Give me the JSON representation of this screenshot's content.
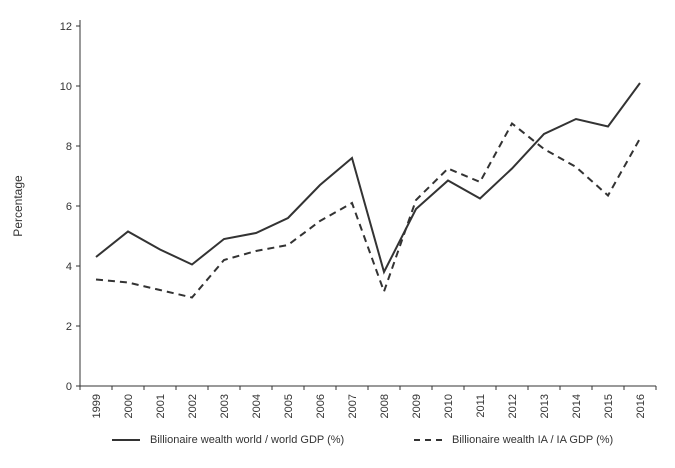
{
  "chart_data": {
    "type": "line",
    "title": "",
    "xlabel": "",
    "ylabel": "Percentage",
    "ylim": [
      0,
      12
    ],
    "yticks": [
      0,
      2,
      4,
      6,
      8,
      10,
      12
    ],
    "ytick_labels": [
      "0",
      "2",
      "4",
      "6",
      "8",
      "10",
      "12"
    ],
    "categories": [
      "1999",
      "2000",
      "2001",
      "2002",
      "2003",
      "2004",
      "2005",
      "2006",
      "2007",
      "2008",
      "2009",
      "2010",
      "2011",
      "2012",
      "2013",
      "2014",
      "2015",
      "2016"
    ],
    "grid": false,
    "legend_position": "bottom",
    "series": [
      {
        "name": "Billionaire wealth world / world GDP (%)",
        "style": "solid",
        "color": "#333333",
        "values": [
          4.3,
          5.15,
          4.55,
          4.05,
          4.9,
          5.1,
          5.6,
          6.7,
          7.6,
          3.8,
          5.9,
          6.85,
          6.25,
          7.25,
          8.4,
          8.9,
          8.65,
          10.1
        ]
      },
      {
        "name": "Billionaire wealth IA / IA GDP (%)",
        "style": "dashed",
        "color": "#333333",
        "values": [
          3.55,
          3.45,
          3.2,
          2.95,
          4.2,
          4.5,
          4.7,
          5.5,
          6.1,
          3.15,
          6.2,
          7.25,
          6.8,
          8.75,
          7.9,
          7.3,
          6.35,
          8.25
        ]
      }
    ]
  }
}
